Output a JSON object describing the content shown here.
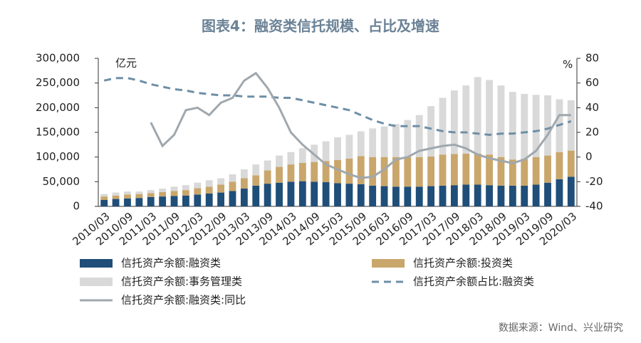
{
  "chart_data": {
    "type": "bar",
    "stacked": true,
    "title": "图表4：融资类信托规模、占比及增速",
    "y_unit": "亿元",
    "y2_unit": "%",
    "source": "数据来源：Wind、兴业研究",
    "categories": [
      "2010/03",
      null,
      "2010/09",
      null,
      "2011/03",
      null,
      "2011/09",
      null,
      "2012/03",
      null,
      "2012/09",
      null,
      "2013/03",
      null,
      "2013/09",
      null,
      "2014/03",
      null,
      "2014/09",
      null,
      "2015/03",
      null,
      "2015/09",
      null,
      "2016/03",
      null,
      "2016/09",
      null,
      "2017/03",
      null,
      "2017/09",
      null,
      "2018/03",
      null,
      "2018/09",
      null,
      "2019/03",
      null,
      "2019/09",
      null,
      "2020/03"
    ],
    "ylim": [
      0,
      300000
    ],
    "yticks": [
      0,
      {
        "value": 50000,
        "label": "50,000"
      },
      {
        "value": 100000,
        "label": "100,000"
      },
      {
        "value": 150000,
        "label": "150,000"
      },
      {
        "value": 200000,
        "label": "200,000"
      },
      {
        "value": 250000,
        "label": "250,000"
      },
      {
        "value": 300000,
        "label": "300,000"
      }
    ],
    "y2lim": [
      -40,
      80
    ],
    "y2ticks": [
      -40,
      -20,
      0,
      20,
      40,
      60,
      80
    ],
    "series": [
      {
        "name": "信托资产余额:融资类",
        "type": "bar",
        "color": "#1f4e79",
        "values": [
          13000,
          15000,
          16000,
          17000,
          19000,
          20000,
          21000,
          22000,
          24000,
          26000,
          28000,
          31000,
          36000,
          42000,
          46000,
          48000,
          50000,
          51000,
          50000,
          49000,
          47000,
          46000,
          45000,
          42000,
          41000,
          40000,
          40000,
          40000,
          41000,
          42000,
          43000,
          44000,
          44000,
          43000,
          42000,
          42000,
          42000,
          44000,
          48000,
          55000,
          60000
        ]
      },
      {
        "name": "信托资产余额:投资类",
        "type": "bar",
        "color": "#c9a66b",
        "values": [
          7000,
          7000,
          8000,
          8000,
          8000,
          9000,
          10000,
          11000,
          13000,
          14000,
          16000,
          19000,
          21000,
          21000,
          27000,
          32000,
          35000,
          37000,
          40000,
          43000,
          47000,
          51000,
          57000,
          58000,
          59000,
          60000,
          60000,
          60000,
          60000,
          63000,
          63000,
          63000,
          63000,
          62000,
          58000,
          53000,
          54000,
          56000,
          55000,
          55000,
          53000
        ]
      },
      {
        "name": "信托资产余额:事务管理类",
        "type": "bar",
        "color": "#d9d9d9",
        "values": [
          5000,
          6000,
          6000,
          5000,
          6000,
          7000,
          9000,
          10000,
          11000,
          13000,
          13000,
          15000,
          18000,
          22000,
          20000,
          23000,
          25000,
          30000,
          35000,
          40000,
          46000,
          48000,
          50000,
          58000,
          62000,
          67000,
          75000,
          85000,
          102000,
          115000,
          129000,
          138000,
          155000,
          151000,
          145000,
          137000,
          132000,
          126000,
          122000,
          107000,
          102000
        ]
      },
      {
        "name": "信托资产余额占比:融资类",
        "type": "line",
        "axis": "y2",
        "dashed": true,
        "color": "#6e8fa6",
        "values": [
          62,
          64,
          64,
          62,
          59,
          57,
          55,
          54,
          52,
          51,
          50,
          50,
          49,
          49,
          49,
          48,
          48,
          46,
          44,
          42,
          40,
          38,
          34,
          30,
          27,
          25,
          25,
          25,
          23,
          21,
          20,
          20,
          19,
          18,
          19,
          19,
          20,
          21,
          23,
          26,
          29
        ]
      },
      {
        "name": "信托资产余额:融资类:同比",
        "type": "line",
        "axis": "y2",
        "dashed": false,
        "color": "#a0a8ae",
        "values": [
          null,
          null,
          null,
          null,
          28,
          9,
          18,
          38,
          40,
          34,
          44,
          48,
          62,
          68,
          56,
          40,
          20,
          10,
          2,
          -6,
          -10,
          -14,
          -17,
          -16,
          -10,
          -2,
          0,
          5,
          7,
          9,
          10,
          7,
          2,
          -1,
          -3,
          -5,
          -2,
          5,
          18,
          34,
          34
        ]
      }
    ]
  }
}
